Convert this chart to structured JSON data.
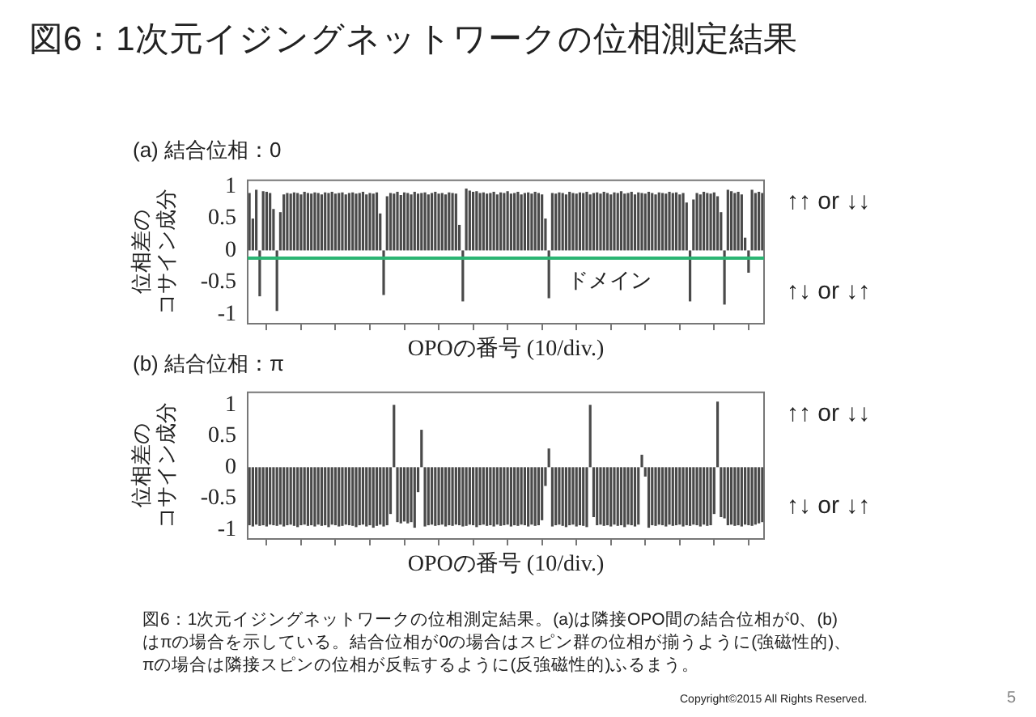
{
  "chart_data": [
    {
      "type": "bar",
      "title": "図6：1次元イジングネットワークの位相測定結果",
      "subtitle": "(a) 結合位相：0",
      "xlabel": "OPOの番号 (10/div.)",
      "ylabel": "位相差のコサイン成分",
      "categories": [
        null,
        null,
        null,
        null,
        null,
        null,
        null,
        null,
        null,
        null,
        null,
        null,
        null,
        null,
        null,
        null,
        null,
        null,
        null,
        null,
        null,
        null,
        null,
        null,
        null,
        null,
        null,
        null,
        null,
        null,
        null,
        null,
        null,
        null,
        null,
        null,
        null,
        null,
        null,
        null,
        null,
        null,
        null,
        null,
        null,
        null,
        null,
        null,
        null,
        null,
        null,
        null,
        null,
        null,
        null,
        null,
        null,
        null,
        null,
        null,
        null,
        null,
        null,
        null,
        null,
        null,
        null,
        null,
        null,
        null,
        null,
        null,
        null,
        null,
        null,
        null,
        null,
        null,
        null,
        null,
        null,
        null,
        null,
        null,
        null,
        null,
        null,
        null,
        null,
        null,
        null,
        null,
        null,
        null,
        null,
        null,
        null,
        null,
        null,
        null,
        null,
        null,
        null,
        null,
        null,
        null,
        null,
        null,
        null,
        null,
        null,
        null,
        null,
        null,
        null,
        null,
        null,
        null,
        null,
        null,
        null,
        null,
        null,
        null,
        null,
        null,
        null,
        null,
        null,
        null,
        null,
        null,
        null,
        null,
        null,
        null,
        null,
        null,
        null,
        null,
        null,
        null,
        null,
        null,
        null,
        null,
        null,
        null,
        null,
        null
      ],
      "values": [
        0.9,
        0.5,
        0.95,
        -0.72,
        0.93,
        0.92,
        0.9,
        0.65,
        -0.95,
        0.6,
        0.88,
        0.9,
        0.89,
        0.91,
        0.9,
        0.88,
        0.92,
        0.9,
        0.89,
        0.91,
        0.9,
        0.88,
        0.91,
        0.9,
        0.92,
        0.89,
        0.9,
        0.91,
        0.88,
        0.9,
        0.91,
        0.89,
        0.9,
        0.92,
        0.88,
        0.9,
        0.89,
        0.91,
        0.58,
        -0.7,
        0.85,
        0.9,
        0.89,
        0.92,
        0.87,
        0.91,
        0.9,
        0.88,
        0.92,
        0.89,
        0.9,
        0.91,
        0.88,
        0.9,
        0.92,
        0.89,
        0.9,
        0.88,
        0.91,
        0.9,
        0.89,
        0.4,
        -0.8,
        0.97,
        0.94,
        0.92,
        0.93,
        0.9,
        0.91,
        0.89,
        0.9,
        0.92,
        0.88,
        0.91,
        0.9,
        0.93,
        0.89,
        0.9,
        0.92,
        0.88,
        0.9,
        0.91,
        0.89,
        0.92,
        0.9,
        0.88,
        0.5,
        -0.75,
        0.9,
        0.89,
        0.91,
        0.9,
        0.88,
        0.92,
        0.9,
        0.89,
        0.91,
        0.9,
        0.92,
        0.88,
        0.9,
        0.91,
        0.89,
        0.92,
        0.9,
        0.88,
        0.91,
        0.9,
        0.93,
        0.89,
        0.9,
        0.92,
        0.88,
        0.91,
        0.9,
        0.89,
        0.92,
        0.9,
        0.88,
        0.91,
        0.9,
        0.89,
        0.92,
        0.9,
        0.91,
        0.88,
        0.9,
        0.75,
        -0.8,
        0.8,
        0.9,
        0.88,
        0.92,
        0.9,
        0.89,
        0.91,
        0.85,
        0.6,
        -0.85,
        0.95,
        0.93,
        0.9,
        0.92,
        0.88,
        0.2,
        -0.35,
        0.95,
        0.9,
        0.92,
        0.9
      ],
      "color": "#4a4a4a",
      "ylim": [
        -1.15,
        1.1
      ],
      "yticks": [
        -1,
        -0.5,
        0,
        0.5,
        1
      ],
      "grid": false,
      "legend": false,
      "ref_lines": [
        {
          "axis": "y",
          "value": -0.12,
          "label": "ドメイン",
          "color": "#2bb573"
        }
      ],
      "annotations": [
        "↑↑ or ↓↓",
        "↑↓ or ↓↑"
      ]
    },
    {
      "type": "bar",
      "title": "(b) 結合位相：π",
      "xlabel": "OPOの番号 (10/div.)",
      "ylabel": "位相差のコサイン成分",
      "categories": [
        null,
        null,
        null,
        null,
        null,
        null,
        null,
        null,
        null,
        null,
        null,
        null,
        null,
        null,
        null,
        null,
        null,
        null,
        null,
        null,
        null,
        null,
        null,
        null,
        null,
        null,
        null,
        null,
        null,
        null,
        null,
        null,
        null,
        null,
        null,
        null,
        null,
        null,
        null,
        null,
        null,
        null,
        null,
        null,
        null,
        null,
        null,
        null,
        null,
        null,
        null,
        null,
        null,
        null,
        null,
        null,
        null,
        null,
        null,
        null,
        null,
        null,
        null,
        null,
        null,
        null,
        null,
        null,
        null,
        null,
        null,
        null,
        null,
        null,
        null,
        null,
        null,
        null,
        null,
        null,
        null,
        null,
        null,
        null,
        null,
        null,
        null,
        null,
        null,
        null,
        null,
        null,
        null,
        null,
        null,
        null,
        null,
        null,
        null,
        null,
        null,
        null,
        null,
        null,
        null,
        null,
        null,
        null,
        null,
        null,
        null,
        null,
        null,
        null,
        null,
        null,
        null,
        null,
        null,
        null,
        null,
        null,
        null,
        null,
        null,
        null,
        null,
        null,
        null,
        null,
        null,
        null,
        null,
        null,
        null,
        null,
        null,
        null,
        null,
        null,
        null,
        null,
        null,
        null,
        null,
        null,
        null,
        null,
        null,
        null
      ],
      "values": [
        -0.93,
        -0.95,
        -0.92,
        -0.94,
        -0.93,
        -0.95,
        -0.92,
        -0.93,
        -0.94,
        -0.92,
        -0.95,
        -0.93,
        -0.92,
        -0.94,
        -0.96,
        -0.93,
        -0.92,
        -0.94,
        -0.93,
        -0.95,
        -0.92,
        -0.94,
        -0.93,
        -0.96,
        -0.92,
        -0.93,
        -0.95,
        -0.94,
        -0.92,
        -0.93,
        -0.94,
        -0.96,
        -0.93,
        -0.92,
        -0.95,
        -0.93,
        -0.97,
        -0.94,
        -0.92,
        -0.95,
        -0.93,
        -0.75,
        1.0,
        -0.88,
        -0.9,
        -0.87,
        -0.9,
        -0.88,
        -0.97,
        -0.4,
        0.6,
        -0.95,
        -0.93,
        -0.92,
        -0.94,
        -0.93,
        -0.92,
        -0.95,
        -0.93,
        -0.94,
        -0.92,
        -0.93,
        -0.95,
        -0.94,
        -0.92,
        -0.93,
        -0.96,
        -0.93,
        -0.92,
        -0.94,
        -0.93,
        -0.95,
        -0.92,
        -0.94,
        -0.93,
        -0.92,
        -0.95,
        -0.93,
        -0.94,
        -0.92,
        -0.93,
        -0.95,
        -0.92,
        -0.94,
        -0.93,
        -0.85,
        -0.3,
        0.3,
        -0.95,
        -0.93,
        -0.92,
        -0.94,
        -0.96,
        -0.93,
        -0.92,
        -0.95,
        -0.93,
        -0.94,
        -0.96,
        1.0,
        -0.8,
        -0.93,
        -0.92,
        -0.94,
        -0.93,
        -0.95,
        -0.92,
        -0.94,
        -0.93,
        -0.96,
        -0.92,
        -0.93,
        -0.95,
        -0.92,
        0.2,
        -0.15,
        -0.97,
        -0.93,
        -0.94,
        -0.92,
        -0.93,
        -0.95,
        -0.92,
        -0.94,
        -0.93,
        -0.92,
        -0.95,
        -0.93,
        -0.94,
        -0.92,
        -0.93,
        -0.95,
        -0.92,
        -0.94,
        -0.93,
        -0.75,
        1.05,
        -0.8,
        -0.82,
        -0.93,
        -0.92,
        -0.94,
        -0.93,
        -0.95,
        -0.92,
        -0.93,
        -0.94,
        -0.92,
        -0.9,
        -0.88
      ],
      "color": "#4a4a4a",
      "ylim": [
        -1.15,
        1.2
      ],
      "yticks": [
        -1,
        -0.5,
        0,
        0.5,
        1
      ],
      "grid": false,
      "legend": false,
      "annotations": [
        "↑↑ or ↓↓",
        "↑↓ or ↓↑",
        "図6：1次元イジングネットワークの位相測定結果。(a)は隣接OPO間の結合位相が0、(b)はπの場合を示している。結合位相が0の場合はスピン群の位相が揃うように(強磁性的)、πの場合は隣接スピンの位相が反転するように(反強磁性的)ふるまう。",
        "Copyright©2015 All Rights Reserved.",
        "5"
      ]
    }
  ]
}
